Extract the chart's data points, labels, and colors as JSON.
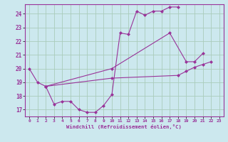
{
  "background_color": "#cce8ee",
  "grid_color": "#aaccbb",
  "line_color": "#993399",
  "ylim": [
    16.5,
    24.7
  ],
  "xlim": [
    -0.5,
    23.5
  ],
  "yticks": [
    17,
    18,
    19,
    20,
    21,
    22,
    23,
    24
  ],
  "xticks": [
    0,
    1,
    2,
    3,
    4,
    5,
    6,
    7,
    8,
    9,
    10,
    11,
    12,
    13,
    14,
    15,
    16,
    17,
    18,
    19,
    20,
    21,
    22,
    23
  ],
  "xlabel": "Windchill (Refroidissement éolien,°C)",
  "series": [
    {
      "x": [
        0,
        1,
        2,
        3,
        4,
        5,
        6,
        7,
        8,
        9,
        10,
        11,
        12,
        13,
        14,
        15,
        16,
        17,
        18
      ],
      "y": [
        20.0,
        19.0,
        18.7,
        17.4,
        17.6,
        17.6,
        17.0,
        16.8,
        16.8,
        17.3,
        18.1,
        22.6,
        22.5,
        24.2,
        23.9,
        24.2,
        24.2,
        24.5,
        24.5
      ]
    },
    {
      "x": [
        2,
        10,
        17,
        19,
        20,
        21
      ],
      "y": [
        18.7,
        20.0,
        22.6,
        20.5,
        20.5,
        21.1
      ]
    },
    {
      "x": [
        2,
        10,
        18,
        19,
        20,
        21,
        22
      ],
      "y": [
        18.7,
        19.3,
        19.5,
        19.8,
        20.1,
        20.3,
        20.5
      ]
    }
  ]
}
